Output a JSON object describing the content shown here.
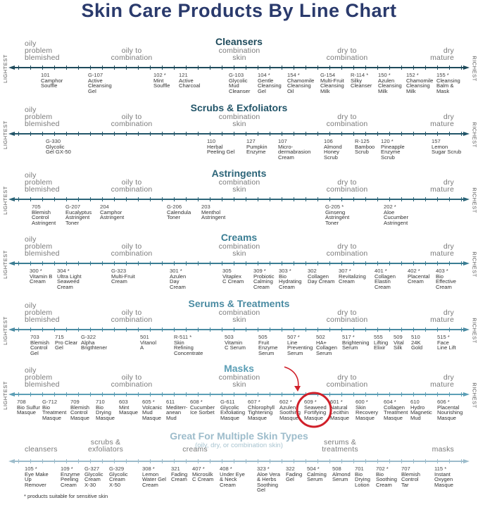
{
  "title": "Skin Care Products By Line Chart",
  "end_labels": {
    "left": "LIGHTEST",
    "right": "RICHEST"
  },
  "footnote": "* products suitable for sensitive skin",
  "highlight": {
    "product": "609 *",
    "color": "#d0202a"
  },
  "zones_standard": [
    "oily\nproblem\nblemished",
    "oily to\ncombination",
    "combination\nskin",
    "dry to\ncombination",
    "dry\nmature"
  ],
  "sections": [
    {
      "title": "Cleansers",
      "color": "#1e4a5b",
      "products": [
        {
          "code": "101",
          "name": "Camphor\nSouffle"
        },
        {
          "code": "G-107",
          "name": "Active\nCleansing\nGel"
        },
        {
          "code": "102 *",
          "name": "Mint\nSouffle"
        },
        {
          "code": "121",
          "name": "Active\nCharcoal"
        },
        {
          "code": "G-103",
          "name": "Glycolic\nMud\nCleanser"
        },
        {
          "code": "104 *",
          "name": "Gentle\nCleansing\nGel"
        },
        {
          "code": "154 *",
          "name": "Chamomile\nCleansing\nOil"
        },
        {
          "code": "G-154",
          "name": "Multi-Fruit\nCleansing\nMilk"
        },
        {
          "code": "R-114 *",
          "name": "Silky\nCleanser"
        },
        {
          "code": "150 *",
          "name": "Azulen\nCleansing\nMilk"
        },
        {
          "code": "152 *",
          "name": "Chamomile\nCleansing\nMilk"
        },
        {
          "code": "155 *",
          "name": "Cleansing\nBalm &\nMask"
        }
      ]
    },
    {
      "title": "Scrubs & Exfoliators",
      "color": "#225569",
      "products": [
        {
          "code": "G-330",
          "name": "Glycolic\nGel GX-50"
        },
        {
          "code": "110",
          "name": "Herbal\nPeeling Gel"
        },
        {
          "code": "127",
          "name": "Pumpkin\nEnzyme"
        },
        {
          "code": "107",
          "name": "Micro-\ndermabrasion\nCream"
        },
        {
          "code": "106",
          "name": "Almond\nHoney\nScrub"
        },
        {
          "code": "R-125",
          "name": "Bamboo\nScrub"
        },
        {
          "code": "120 *",
          "name": "Pineapple\nEnzyme\nScrub"
        },
        {
          "code": "157",
          "name": "Lemon\nSugar Scrub"
        }
      ]
    },
    {
      "title": "Astringents",
      "color": "#2b6478",
      "products": [
        {
          "code": "705",
          "name": "Blemish\nControl\nAstringent"
        },
        {
          "code": "G-207",
          "name": "Eucalyptus\nAstringent\nToner"
        },
        {
          "code": "204",
          "name": "Camphor\nAstringent"
        },
        {
          "code": "G-206",
          "name": "Calendula\nToner"
        },
        {
          "code": "203",
          "name": "Menthol\nAstringent"
        },
        {
          "code": "G-205 *",
          "name": "Ginseng\nAstringent\nToner"
        },
        {
          "code": "202 *",
          "name": "Aloe\nCucumber\nAstringent"
        }
      ]
    },
    {
      "title": "Creams",
      "color": "#3a7d93",
      "products": [
        {
          "code": "300 *",
          "name": "Vitamin B\nCream"
        },
        {
          "code": "304 *",
          "name": "Ultra Light\nSeaweed\nCream"
        },
        {
          "code": "G-323",
          "name": "Multi-Fruit\nCream"
        },
        {
          "code": "301 *",
          "name": "Azulen\nDay\nCream"
        },
        {
          "code": "305",
          "name": "Vitaplex\nC Cream"
        },
        {
          "code": "309 *",
          "name": "Probiotic\nCalming\nCream"
        },
        {
          "code": "303 *",
          "name": "Bio\nHydrating\nCream"
        },
        {
          "code": "302",
          "name": "Collagen\nDay Cream"
        },
        {
          "code": "307 *",
          "name": "Revitalizing\nCream"
        },
        {
          "code": "401 *",
          "name": "Collagen\nElastin\nCream"
        },
        {
          "code": "402 *",
          "name": "Placental\nCream"
        },
        {
          "code": "403 *",
          "name": "Bio\nEffective\nCream"
        }
      ]
    },
    {
      "title": "Serums & Treatments",
      "color": "#4a8ba2",
      "products": [
        {
          "code": "703",
          "name": "Blemish\nControl\nGel"
        },
        {
          "code": "715",
          "name": "Pro Clear\nGel"
        },
        {
          "code": "G-322",
          "name": "Alpha\nBrigthtener"
        },
        {
          "code": "501",
          "name": "Vitanol\nA"
        },
        {
          "code": "R-511 *",
          "name": "Skin\nRefining\nConcentrate"
        },
        {
          "code": "503",
          "name": "Vitamin\nC Serum"
        },
        {
          "code": "505",
          "name": "Fruit\nEnzyme\nSerum"
        },
        {
          "code": "507 *",
          "name": "Line\nPreventing\nSerum"
        },
        {
          "code": "502",
          "name": "HA+\nCollagen\nSerum"
        },
        {
          "code": "517 *",
          "name": "Brightening\nSerum"
        },
        {
          "code": "555",
          "name": "Lifting\nElixir"
        },
        {
          "code": "509",
          "name": "Vital\nSilk"
        },
        {
          "code": "510",
          "name": "24K\nGold"
        },
        {
          "code": "515 *",
          "name": "Face\nLine Lift"
        }
      ]
    },
    {
      "title": "Masks",
      "color": "#5c9fb6",
      "products": [
        {
          "code": "708",
          "name": "Bio Sulfur\nMasque"
        },
        {
          "code": "G-712",
          "name": "Bio\nTreatment\nMasque"
        },
        {
          "code": "709",
          "name": "Blemish\nControl\nMasque"
        },
        {
          "code": "710",
          "name": "Bio\nDrying\nMasque"
        },
        {
          "code": "603",
          "name": "Mint\nMasque"
        },
        {
          "code": "605 *",
          "name": "Volcanic\nMud\nMasque"
        },
        {
          "code": "611",
          "name": "Mediterr-\nanean\nMud"
        },
        {
          "code": "608 *",
          "name": "Cucumber\nIce Sorbet"
        },
        {
          "code": "G-611",
          "name": "Glycolic\nExfoliating\nMasque"
        },
        {
          "code": "607 *",
          "name": "Chlorophyll\nTightening\nMasque"
        },
        {
          "code": "602 *",
          "name": "Azulen\nSoothing\nMasque"
        },
        {
          "code": "609 *",
          "name": "Seaweed\nFortifying\nMasque"
        },
        {
          "code": "601 *",
          "name": "Natural\nLecithin\nMasque"
        },
        {
          "code": "600 *",
          "name": "Skin\nRecovery\nMasque"
        },
        {
          "code": "604 *",
          "name": "Collagen\nTreatment\nMasque"
        },
        {
          "code": "610",
          "name": "Hydro\nMagnetic\nMud"
        },
        {
          "code": "606 *",
          "name": "Placental\nNourishing\nMasque"
        }
      ]
    },
    {
      "title": "Great For Multiple Skin Types",
      "subtitle": "(oily, dry, or combination skin)",
      "color": "#9dbccb",
      "zones": [
        "cleansers",
        "scrubs &\nexfoliators",
        "creams",
        "serums &\ntreatments",
        "masks"
      ],
      "products": [
        {
          "code": "105 *",
          "name": "Eye Make\nUp\nRemover"
        },
        {
          "code": "109 *",
          "name": "Enzyme\nPeeling\nCream"
        },
        {
          "code": "G-327",
          "name": "Glycolic\nCream\nX-30"
        },
        {
          "code": "G-329",
          "name": "Glycolic\nCream\nX-50"
        },
        {
          "code": "308 *",
          "name": "Lemon\nWater Gel\nCream"
        },
        {
          "code": "321",
          "name": "Fading\nCream"
        },
        {
          "code": "407 *",
          "name": "Microsilk\nC Cream"
        },
        {
          "code": "408 *",
          "name": "Under Eye\n& Neck\nCream"
        },
        {
          "code": "323 *",
          "name": "Aloe Vera\n& Herbs\nSoothing\nGel"
        },
        {
          "code": "322",
          "name": "Fading\nGel"
        },
        {
          "code": "504 *",
          "name": "Calming\nSerum"
        },
        {
          "code": "508",
          "name": "Almond\nSerum"
        },
        {
          "code": "701",
          "name": "Bio\nDrying\nLotion"
        },
        {
          "code": "702 *",
          "name": "Bio\nSoothing\nCream"
        },
        {
          "code": "707",
          "name": "Blemish\nControl\nTar"
        },
        {
          "code": "115 *",
          "name": "Instant\nOxygen\nMasque"
        }
      ]
    }
  ]
}
